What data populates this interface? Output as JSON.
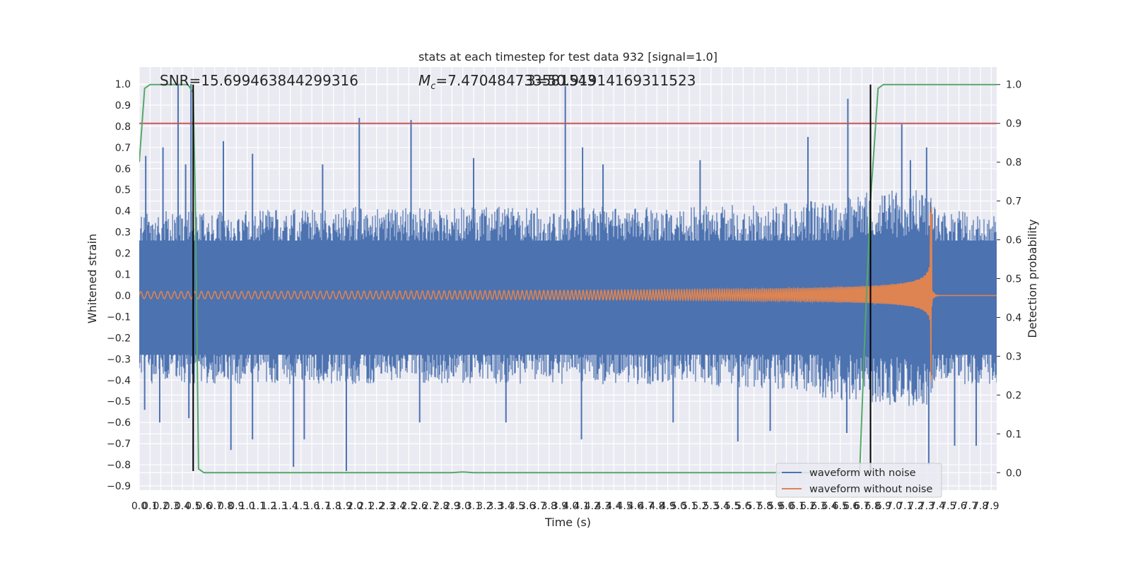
{
  "chart_data": {
    "type": "line",
    "title": "stats at each timestep for test data 932 [signal=1.0]",
    "xlabel": "Time (s)",
    "ylabel": "Whitened strain",
    "y2label": "Detection probability",
    "xlim": [
      0.0,
      7.95
    ],
    "ylim": [
      -0.92,
      1.08
    ],
    "y2lim": [
      -0.045,
      1.045
    ],
    "x_ticks": [
      "0.0",
      "0.1",
      "0.2",
      "0.3",
      "0.4",
      "0.5",
      "0.6",
      "0.7",
      "0.8",
      "0.9",
      "1.0",
      "1.1",
      "1.2",
      "1.3",
      "1.4",
      "1.5",
      "1.6",
      "1.7",
      "1.8",
      "1.9",
      "2.0",
      "2.1",
      "2.2",
      "2.3",
      "2.4",
      "2.5",
      "2.6",
      "2.7",
      "2.8",
      "2.9",
      "3.0",
      "3.1",
      "3.2",
      "3.3",
      "3.4",
      "3.5",
      "3.6",
      "3.7",
      "3.8",
      "3.9",
      "4.0",
      "4.1",
      "4.2",
      "4.3",
      "4.4",
      "4.5",
      "4.6",
      "4.7",
      "4.8",
      "4.9",
      "5.0",
      "5.1",
      "5.2",
      "5.3",
      "5.4",
      "5.5",
      "5.6",
      "5.7",
      "5.8",
      "5.9",
      "6.0",
      "6.1",
      "6.2",
      "6.3",
      "6.4",
      "6.5",
      "6.6",
      "6.7",
      "6.8",
      "6.9",
      "7.0",
      "7.1",
      "7.2",
      "7.3",
      "7.4",
      "7.5",
      "7.6",
      "7.7",
      "7.8",
      "7.9"
    ],
    "y_ticks": [
      "−0.9",
      "−0.8",
      "−0.7",
      "−0.6",
      "−0.5",
      "−0.4",
      "−0.3",
      "−0.2",
      "−0.1",
      "0.0",
      "0.1",
      "0.2",
      "0.3",
      "0.4",
      "0.5",
      "0.6",
      "0.7",
      "0.8",
      "0.9",
      "1.0"
    ],
    "y2_ticks": [
      "0.0",
      "0.1",
      "0.2",
      "0.3",
      "0.4",
      "0.5",
      "0.6",
      "0.7",
      "0.8",
      "0.9",
      "1.0"
    ],
    "annotations": {
      "snr": "SNR=15.699463844299316",
      "mc_symbol": "M",
      "mc_sub": "c",
      "mc_value": "=7.470484733581543",
      "overlap": "3=50.91914169311523"
    },
    "threshold_line": {
      "axis": "y2",
      "value": 0.9
    },
    "vertical_markers": [
      0.5,
      6.78
    ],
    "detection_probability": {
      "x": [
        0.0,
        0.05,
        0.1,
        0.2,
        0.3,
        0.4,
        0.45,
        0.5,
        0.52,
        0.55,
        0.6,
        0.8,
        1.0,
        2.0,
        2.9,
        3.0,
        3.1,
        4.0,
        5.0,
        6.0,
        6.6,
        6.68,
        6.72,
        6.78,
        6.85,
        6.9,
        7.0,
        7.2,
        7.95
      ],
      "y": [
        0.8,
        0.99,
        1.0,
        1.0,
        1.0,
        1.0,
        1.0,
        0.98,
        0.7,
        0.01,
        0.0,
        0.0,
        0.0,
        0.0,
        0.0,
        0.002,
        0.0,
        0.0,
        0.0,
        0.0,
        0.0,
        0.0,
        0.3,
        0.7,
        0.99,
        1.0,
        1.0,
        1.0,
        1.0
      ]
    },
    "noise_envelope": {
      "x": [
        0.0,
        1.0,
        2.0,
        3.0,
        4.0,
        5.0,
        6.0,
        6.5,
        6.8,
        7.0,
        7.2,
        7.3,
        7.35,
        7.45,
        7.6,
        7.95
      ],
      "upper": [
        0.4,
        0.4,
        0.42,
        0.42,
        0.42,
        0.42,
        0.44,
        0.46,
        0.5,
        0.5,
        0.5,
        0.52,
        0.45,
        0.4,
        0.4,
        0.38
      ],
      "lower": [
        -0.42,
        -0.42,
        -0.42,
        -0.42,
        -0.42,
        -0.42,
        -0.45,
        -0.5,
        -0.52,
        -0.52,
        -0.53,
        -0.55,
        -0.45,
        -0.42,
        -0.42,
        -0.42
      ]
    },
    "noise_spikes": [
      {
        "x": 0.36,
        "y": 1.0
      },
      {
        "x": 0.06,
        "y": 0.66
      },
      {
        "x": 0.22,
        "y": 0.7
      },
      {
        "x": 0.43,
        "y": 0.62
      },
      {
        "x": 0.48,
        "y": 1.0
      },
      {
        "x": 0.78,
        "y": 0.73
      },
      {
        "x": 1.05,
        "y": 0.67
      },
      {
        "x": 1.7,
        "y": 0.62
      },
      {
        "x": 2.04,
        "y": 0.84
      },
      {
        "x": 2.52,
        "y": 0.83
      },
      {
        "x": 3.1,
        "y": 0.65
      },
      {
        "x": 3.95,
        "y": 0.99
      },
      {
        "x": 4.11,
        "y": 0.7
      },
      {
        "x": 4.3,
        "y": 0.62
      },
      {
        "x": 5.2,
        "y": 0.64
      },
      {
        "x": 6.2,
        "y": 0.75
      },
      {
        "x": 6.57,
        "y": 0.93
      },
      {
        "x": 7.07,
        "y": 0.81
      },
      {
        "x": 7.3,
        "y": 0.7
      },
      {
        "x": 7.15,
        "y": 0.64
      },
      {
        "x": 0.05,
        "y": -0.54
      },
      {
        "x": 0.19,
        "y": -0.6
      },
      {
        "x": 0.46,
        "y": -0.58
      },
      {
        "x": 0.85,
        "y": -0.73
      },
      {
        "x": 1.05,
        "y": -0.68
      },
      {
        "x": 1.43,
        "y": -0.81
      },
      {
        "x": 1.53,
        "y": -0.68
      },
      {
        "x": 1.92,
        "y": -0.83
      },
      {
        "x": 2.6,
        "y": -0.6
      },
      {
        "x": 4.1,
        "y": -0.68
      },
      {
        "x": 4.95,
        "y": -0.6
      },
      {
        "x": 5.55,
        "y": -0.69
      },
      {
        "x": 6.56,
        "y": -0.65
      },
      {
        "x": 7.32,
        "y": -0.8
      },
      {
        "x": 7.56,
        "y": -0.71
      },
      {
        "x": 7.76,
        "y": -0.71
      },
      {
        "x": 5.85,
        "y": -0.64
      },
      {
        "x": 3.4,
        "y": -0.6
      }
    ],
    "clean_chirp": {
      "merger_x": 7.35,
      "peak_upper": 0.42,
      "peak_lower": -0.33,
      "start_amplitude": 0.018,
      "start_cycles_per_s": 16,
      "end_cycles_per_s": 90
    },
    "colors": {
      "noise": "#4c72b0",
      "clean": "#dd8452",
      "probability": "#55a868",
      "threshold": "#c44e52",
      "marker": "#000000",
      "background": "#eaeaf2"
    },
    "legend": {
      "placement": "lower-right",
      "entries": [
        {
          "label": "waveform with noise",
          "color": "#4c72b0"
        },
        {
          "label": "waveform without noise",
          "color": "#dd8452"
        }
      ]
    },
    "grid": true
  }
}
